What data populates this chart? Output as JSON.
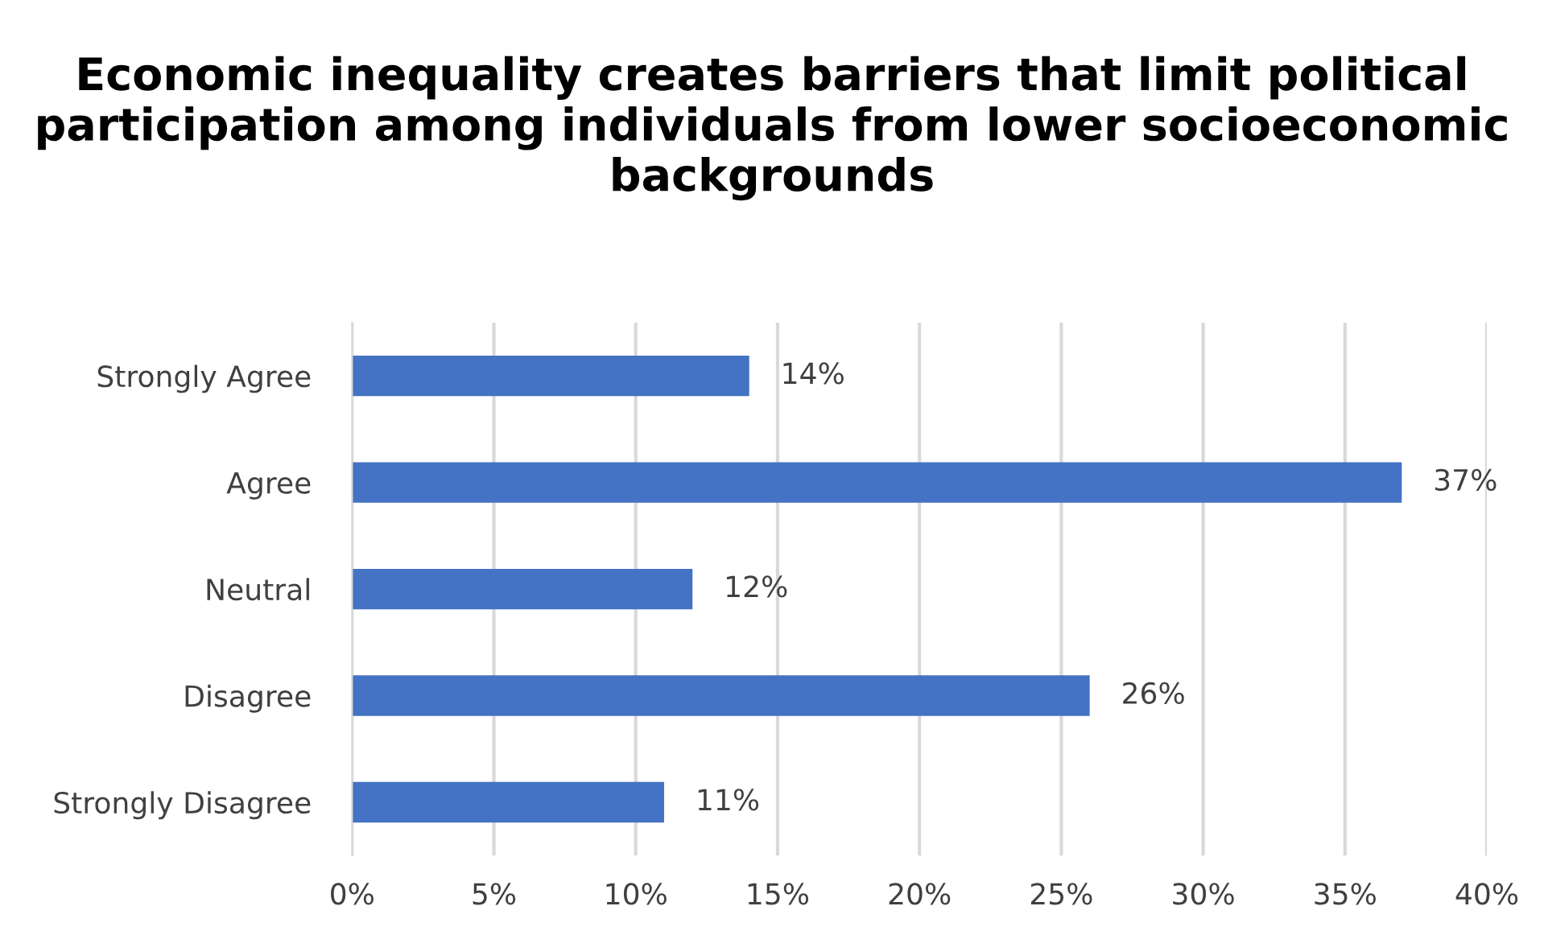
{
  "chart_data": {
    "type": "bar",
    "orientation": "horizontal",
    "title": "Economic inequality creates barriers that limit political participation among individuals from lower socioeconomic backgrounds",
    "categories": [
      "Strongly Agree",
      "Agree",
      "Neutral",
      "Disagree",
      "Strongly Disagree"
    ],
    "values": [
      14,
      37,
      12,
      26,
      11
    ],
    "value_labels": [
      "14%",
      "37%",
      "12%",
      "26%",
      "11%"
    ],
    "color": "#4472c4",
    "xlim": [
      0,
      40
    ],
    "xticks": [
      {
        "value": 0,
        "label": "0%"
      },
      {
        "value": 5,
        "label": "5%"
      },
      {
        "value": 10,
        "label": "10%"
      },
      {
        "value": 15,
        "label": "15%"
      },
      {
        "value": 20,
        "label": "20%"
      },
      {
        "value": 25,
        "label": "25%"
      },
      {
        "value": 30,
        "label": "30%"
      },
      {
        "value": 35,
        "label": "35%"
      },
      {
        "value": 40,
        "label": "40%"
      }
    ],
    "grid": "x",
    "legend": false
  }
}
